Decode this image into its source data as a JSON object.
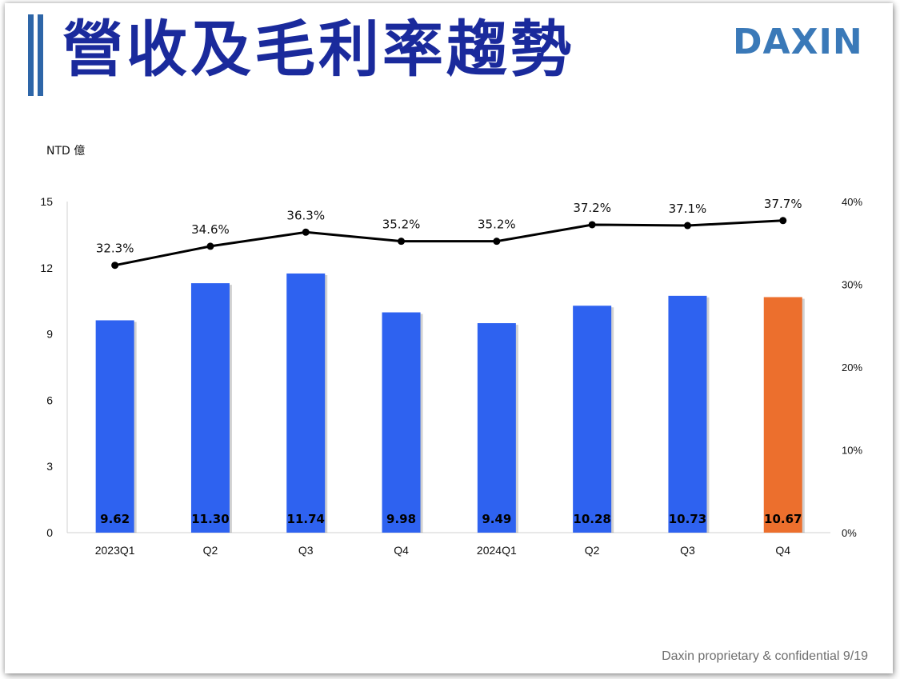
{
  "header": {
    "title": "營收及毛利率趨勢",
    "logo": "DAXIN"
  },
  "footer": {
    "text": "Daxin proprietary & confidential",
    "page": "9/19"
  },
  "colors": {
    "title": "#1a2a9c",
    "title_bars": "#2e66a8",
    "logo": "#3a79b8",
    "bar": "#2e62f0",
    "bar_highlight": "#ec6f2d",
    "line": "#000000"
  },
  "chart_data": {
    "type": "bar",
    "unit_label": "NTD 億",
    "categories": [
      "2023Q1",
      "Q2",
      "Q3",
      "Q4",
      "2024Q1",
      "Q2",
      "Q3",
      "Q4"
    ],
    "y_left": {
      "min": 0,
      "max": 15,
      "ticks": [
        0,
        3,
        6,
        9,
        12,
        15
      ]
    },
    "y_right": {
      "min": 0,
      "max": 40,
      "ticks": [
        "0%",
        "10%",
        "20%",
        "30%",
        "40%"
      ]
    },
    "series": [
      {
        "type": "bar",
        "axis": "left",
        "values": [
          9.62,
          11.3,
          11.74,
          9.98,
          9.49,
          10.28,
          10.73,
          10.67
        ],
        "value_labels": [
          "9.62",
          "11.30",
          "11.74",
          "9.98",
          "9.49",
          "10.28",
          "10.73",
          "10.67"
        ],
        "highlight_index": 7
      },
      {
        "type": "line",
        "axis": "right",
        "values": [
          32.3,
          34.6,
          36.3,
          35.2,
          35.2,
          37.2,
          37.1,
          37.7
        ],
        "value_labels": [
          "32.3%",
          "34.6%",
          "36.3%",
          "35.2%",
          "35.2%",
          "37.2%",
          "37.1%",
          "37.7%"
        ]
      }
    ],
    "grid": false,
    "legend": "none"
  }
}
